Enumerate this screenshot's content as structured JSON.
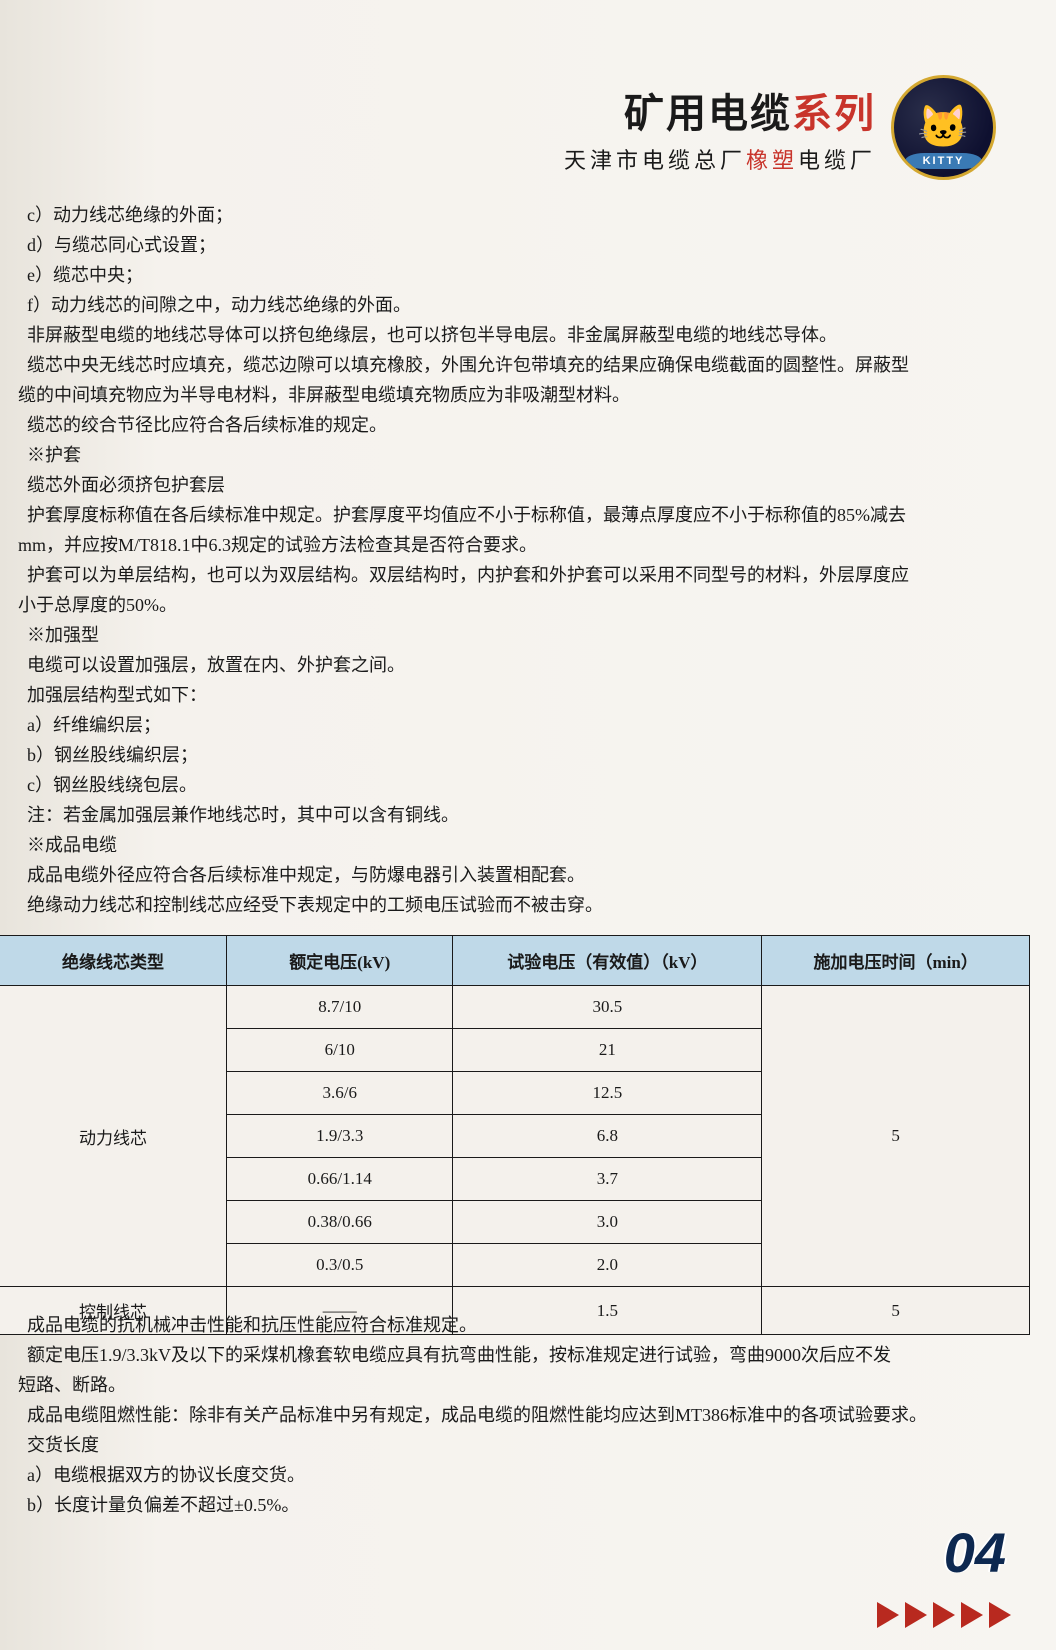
{
  "header": {
    "title_black": "矿用电缆",
    "title_red": "系列",
    "subtitle_part1": "天津市电缆总厂",
    "subtitle_red": "橡塑",
    "subtitle_part2": "电缆厂",
    "logo_text": "KITTY"
  },
  "body": {
    "lines": [
      "c）动力线芯绝缘的外面；",
      "d）与缆芯同心式设置；",
      "e）缆芯中央；",
      "f）动力线芯的间隙之中，动力线芯绝缘的外面。",
      "非屏蔽型电缆的地线芯导体可以挤包绝缘层，也可以挤包半导电层。非金属屏蔽型电缆的地线芯导体。",
      "缆芯中央无线芯时应填充，缆芯边隙可以填充橡胶，外围允许包带填充的结果应确保电缆截面的圆整性。屏蔽型",
      "缆的中间填充物应为半导电材料，非屏蔽型电缆填充物质应为非吸潮型材料。",
      "缆芯的绞合节径比应符合各后续标准的规定。",
      "※护套",
      "缆芯外面必须挤包护套层",
      "护套厚度标称值在各后续标准中规定。护套厚度平均值应不小于标称值，最薄点厚度应不小于标称值的85%减去",
      "mm，并应按M/T818.1中6.3规定的试验方法检查其是否符合要求。",
      "护套可以为单层结构，也可以为双层结构。双层结构时，内护套和外护套可以采用不同型号的材料，外层厚度应",
      "小于总厚度的50%。",
      "※加强型",
      "电缆可以设置加强层，放置在内、外护套之间。",
      "加强层结构型式如下：",
      "a）纤维编织层；",
      "b）钢丝股线编织层；",
      "c）钢丝股线绕包层。",
      "注：若金属加强层兼作地线芯时，其中可以含有铜线。",
      "※成品电缆",
      "成品电缆外径应符合各后续标准中规定，与防爆电器引入装置相配套。",
      "绝缘动力线芯和控制线芯应经受下表规定中的工频电压试验而不被击穿。"
    ]
  },
  "table": {
    "header_bg": "#bfd9e8",
    "border_color": "#1a1a1a",
    "columns": [
      "绝缘线芯类型",
      "额定电压(kV)",
      "试验电压（有效值）（kV）",
      "施加电压时间（min）"
    ],
    "power_core_label": "动力线芯",
    "control_core_label": "控制线芯",
    "power_rows": [
      {
        "voltage": "8.7/10",
        "test": "30.5"
      },
      {
        "voltage": "6/10",
        "test": "21"
      },
      {
        "voltage": "3.6/6",
        "test": "12.5"
      },
      {
        "voltage": "1.9/3.3",
        "test": "6.8"
      },
      {
        "voltage": "0.66/1.14",
        "test": "3.7"
      },
      {
        "voltage": "0.38/0.66",
        "test": "3.0"
      },
      {
        "voltage": "0.3/0.5",
        "test": "2.0"
      }
    ],
    "control_row": {
      "voltage": "——",
      "test": "1.5",
      "time": "5"
    },
    "power_time": "5"
  },
  "below": {
    "lines": [
      "成品电缆的抗机械冲击性能和抗压性能应符合标准规定。",
      "额定电压1.9/3.3kV及以下的采煤机橡套软电缆应具有抗弯曲性能，按标准规定进行试验，弯曲9000次后应不发",
      "短路、断路。",
      "成品电缆阻燃性能：除非有关产品标准中另有规定，成品电缆的阻燃性能均应达到MT386标准中的各项试验要求。",
      "交货长度",
      "a）电缆根据双方的协议长度交货。",
      "b）长度计量负偏差不超过±0.5%。"
    ]
  },
  "footer": {
    "page_num": "04",
    "arrow_color": "#b8291f"
  }
}
